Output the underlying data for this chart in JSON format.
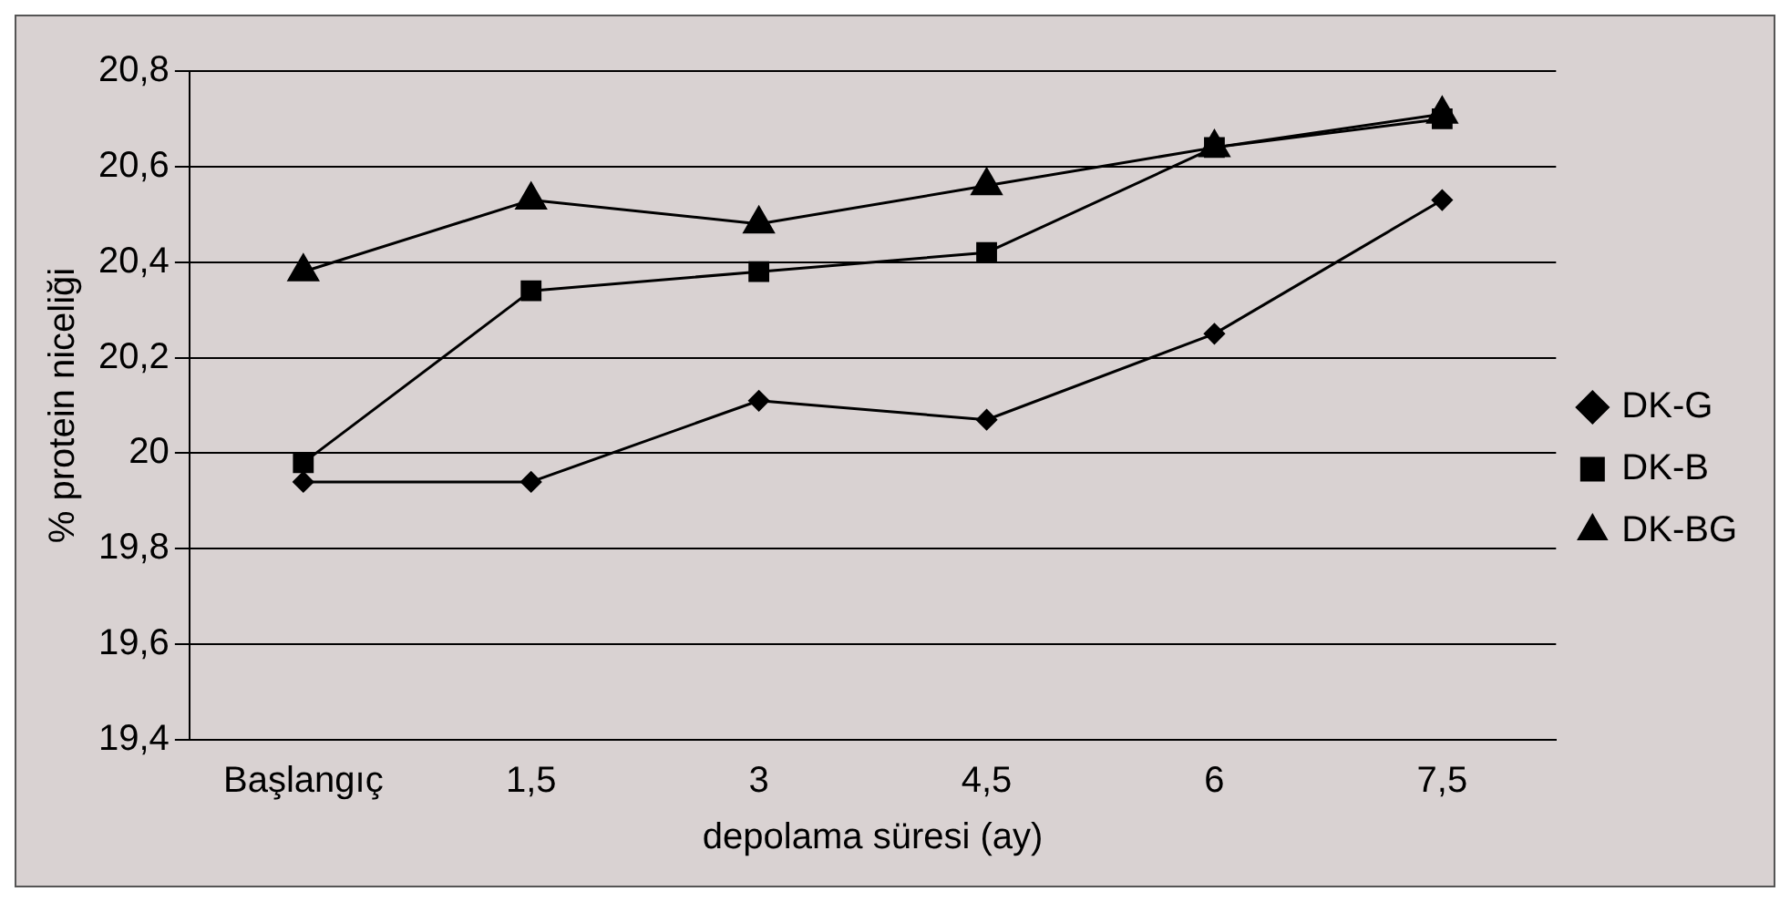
{
  "chart_data": {
    "type": "line",
    "xlabel": "depolama süresi (ay)",
    "ylabel": "% protein niceliği",
    "categories": [
      "Başlangıç",
      "1,5",
      "3",
      "4,5",
      "6",
      "7,5"
    ],
    "series": [
      {
        "name": "DK-G",
        "color": "#000000",
        "marker": "diamond",
        "values": [
          19.94,
          19.94,
          20.11,
          20.07,
          20.25,
          20.53
        ]
      },
      {
        "name": "DK-B",
        "color": "#000000",
        "marker": "square",
        "values": [
          19.98,
          20.34,
          20.38,
          20.42,
          20.64,
          20.7
        ]
      },
      {
        "name": "DK-BG",
        "color": "#000000",
        "marker": "triangle",
        "values": [
          20.38,
          20.53,
          20.48,
          20.56,
          20.64,
          20.71
        ]
      }
    ],
    "ylim": [
      19.4,
      20.8
    ],
    "yticks": [
      {
        "value": 19.4,
        "label": "19,4"
      },
      {
        "value": 19.6,
        "label": "19,6"
      },
      {
        "value": 19.8,
        "label": "19,8"
      },
      {
        "value": 20,
        "label": "20"
      },
      {
        "value": 20.2,
        "label": "20,2"
      },
      {
        "value": 20.4,
        "label": "20,4"
      },
      {
        "value": 20.6,
        "label": "20,6"
      },
      {
        "value": 20.8,
        "label": "20,8"
      }
    ],
    "grid": "y",
    "legend": "right",
    "line_style": "solid"
  }
}
